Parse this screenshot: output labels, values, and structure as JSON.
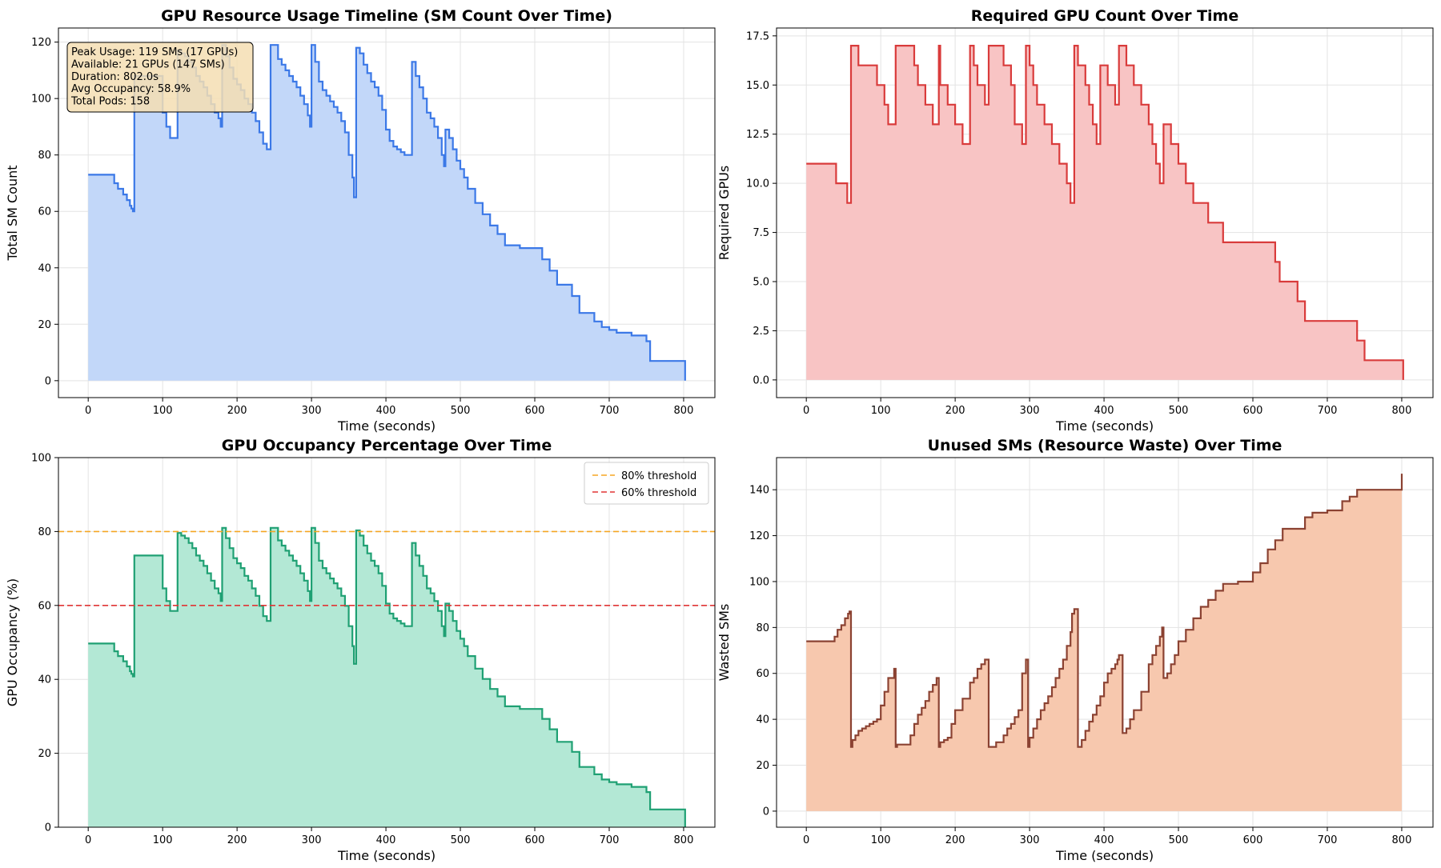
{
  "chart_data": [
    {
      "type": "area",
      "step": true,
      "title": "GPU Resource Usage Timeline (SM Count Over Time)",
      "xlabel": "Time (seconds)",
      "ylabel": "Total SM Count",
      "xlim": [
        -40,
        842
      ],
      "ylim": [
        -6,
        125
      ],
      "xticks": [
        0,
        100,
        200,
        300,
        400,
        500,
        600,
        700,
        800
      ],
      "yticks": [
        0,
        20,
        40,
        60,
        80,
        100,
        120
      ],
      "grid": true,
      "line_color": "#3b78e7",
      "fill_color": "#c2d7f9",
      "x": [
        0,
        35,
        40,
        47,
        52,
        56,
        58,
        60,
        62,
        100,
        105,
        110,
        115,
        120,
        125,
        130,
        135,
        140,
        145,
        150,
        155,
        160,
        165,
        170,
        175,
        178,
        180,
        185,
        190,
        195,
        200,
        205,
        210,
        215,
        220,
        225,
        230,
        235,
        240,
        245,
        250,
        255,
        260,
        265,
        270,
        275,
        280,
        285,
        290,
        295,
        298,
        300,
        305,
        310,
        315,
        320,
        325,
        330,
        335,
        340,
        345,
        350,
        355,
        357,
        360,
        365,
        370,
        375,
        380,
        385,
        390,
        395,
        400,
        405,
        410,
        415,
        420,
        425,
        430,
        435,
        440,
        445,
        450,
        455,
        460,
        465,
        470,
        475,
        478,
        480,
        485,
        490,
        495,
        500,
        505,
        510,
        520,
        530,
        540,
        550,
        560,
        570,
        580,
        590,
        600,
        610,
        620,
        630,
        640,
        650,
        660,
        670,
        680,
        690,
        700,
        710,
        720,
        730,
        740,
        750,
        755,
        760,
        770,
        780,
        790,
        802
      ],
      "y": [
        73,
        70,
        68,
        66,
        64,
        62,
        61,
        60,
        108,
        95,
        90,
        86,
        86,
        117,
        116,
        115,
        113,
        111,
        108,
        106,
        104,
        101,
        98,
        95,
        93,
        90,
        119,
        115,
        111,
        107,
        105,
        103,
        100,
        98,
        95,
        92,
        88,
        84,
        82,
        119,
        119,
        114,
        112,
        110,
        108,
        106,
        104,
        101,
        98,
        94,
        90,
        119,
        113,
        106,
        103,
        101,
        99,
        97,
        95,
        92,
        88,
        80,
        72,
        65,
        118,
        116,
        112,
        109,
        106,
        104,
        101,
        96,
        89,
        85,
        83,
        82,
        81,
        80,
        80,
        113,
        108,
        104,
        100,
        95,
        93,
        90,
        86,
        80,
        76,
        89,
        86,
        82,
        78,
        75,
        72,
        68,
        63,
        59,
        55,
        52,
        48,
        48,
        47,
        47,
        47,
        43,
        39,
        34,
        34,
        30,
        24,
        24,
        21,
        19,
        18,
        17,
        17,
        16,
        16,
        14,
        7,
        7,
        7,
        7,
        7,
        0
      ]
    },
    {
      "type": "area",
      "step": true,
      "title": "Required GPU Count Over Time",
      "xlabel": "Time (seconds)",
      "ylabel": "Required GPUs",
      "xlim": [
        -40,
        842
      ],
      "ylim": [
        -0.9,
        17.9
      ],
      "xticks": [
        0,
        100,
        200,
        300,
        400,
        500,
        600,
        700,
        800
      ],
      "yticks": [
        0.0,
        2.5,
        5.0,
        7.5,
        10.0,
        12.5,
        15.0,
        17.5
      ],
      "ytick_labels": [
        "0.0",
        "2.5",
        "5.0",
        "7.5",
        "10.0",
        "12.5",
        "15.0",
        "17.5"
      ],
      "grid": true,
      "line_color": "#d93b3b",
      "fill_color": "#f8c4c4",
      "x": [
        0,
        40,
        55,
        60,
        70,
        95,
        105,
        110,
        120,
        145,
        150,
        160,
        170,
        178,
        180,
        190,
        200,
        210,
        220,
        225,
        230,
        240,
        245,
        265,
        275,
        280,
        290,
        295,
        300,
        305,
        310,
        320,
        330,
        340,
        350,
        355,
        357,
        360,
        365,
        375,
        380,
        385,
        390,
        395,
        405,
        415,
        420,
        430,
        440,
        450,
        460,
        465,
        470,
        475,
        480,
        490,
        500,
        510,
        520,
        540,
        560,
        575,
        590,
        600,
        630,
        636,
        660,
        670,
        700,
        740,
        750,
        755,
        760,
        802
      ],
      "y": [
        11,
        10,
        9,
        17,
        16,
        15,
        14,
        13,
        17,
        16,
        15,
        14,
        13,
        17,
        15,
        14,
        13,
        12,
        17,
        16,
        15,
        14,
        17,
        16,
        15,
        13,
        12,
        17,
        16,
        15,
        14,
        13,
        12,
        11,
        10,
        9,
        9,
        17,
        16,
        15,
        14,
        13,
        12,
        16,
        15,
        14,
        17,
        16,
        15,
        14,
        13,
        12,
        11,
        10,
        13,
        12,
        11,
        10,
        9,
        8,
        7,
        7,
        7,
        7,
        6,
        5,
        4,
        3,
        3,
        2,
        1,
        1,
        1,
        0
      ]
    },
    {
      "type": "area",
      "step": true,
      "title": "GPU Occupancy Percentage Over Time",
      "xlabel": "Time (seconds)",
      "ylabel": "GPU Occupancy (%)",
      "xlim": [
        -40,
        842
      ],
      "ylim": [
        0,
        100
      ],
      "xticks": [
        0,
        100,
        200,
        300,
        400,
        500,
        600,
        700,
        800
      ],
      "yticks": [
        0,
        20,
        40,
        60,
        80,
        100
      ],
      "grid": true,
      "line_color": "#1fa073",
      "fill_color": "#b3e8d5",
      "legend": "upper right",
      "thresholds": [
        {
          "y": 80,
          "label": "80% threshold",
          "color": "#f5a623"
        },
        {
          "y": 60,
          "label": "60% threshold",
          "color": "#e03535"
        }
      ],
      "x": [
        0,
        35,
        40,
        47,
        52,
        56,
        58,
        60,
        62,
        100,
        105,
        110,
        115,
        120,
        125,
        130,
        135,
        140,
        145,
        150,
        155,
        160,
        165,
        170,
        175,
        178,
        180,
        185,
        190,
        195,
        200,
        205,
        210,
        215,
        220,
        225,
        230,
        235,
        240,
        245,
        250,
        255,
        260,
        265,
        270,
        275,
        280,
        285,
        290,
        295,
        298,
        300,
        305,
        310,
        315,
        320,
        325,
        330,
        335,
        340,
        345,
        350,
        355,
        357,
        360,
        365,
        370,
        375,
        380,
        385,
        390,
        395,
        400,
        405,
        410,
        415,
        420,
        425,
        430,
        435,
        440,
        445,
        450,
        455,
        460,
        465,
        470,
        475,
        478,
        480,
        485,
        490,
        495,
        500,
        505,
        510,
        520,
        530,
        540,
        550,
        560,
        570,
        580,
        590,
        600,
        610,
        620,
        630,
        640,
        650,
        660,
        670,
        680,
        690,
        700,
        710,
        720,
        730,
        740,
        750,
        755,
        760,
        770,
        780,
        790,
        802
      ],
      "y": [
        49.7,
        47.6,
        46.3,
        44.9,
        43.5,
        42.2,
        41.5,
        40.8,
        73.5,
        64.6,
        61.2,
        58.5,
        58.5,
        79.6,
        78.9,
        78.2,
        76.9,
        75.5,
        73.5,
        72.1,
        70.7,
        68.7,
        66.7,
        64.6,
        63.3,
        61.2,
        81.0,
        78.2,
        75.5,
        72.8,
        71.4,
        70.1,
        68.0,
        66.7,
        64.6,
        62.6,
        59.9,
        57.1,
        55.8,
        81.0,
        81.0,
        77.6,
        76.2,
        74.8,
        73.5,
        72.1,
        70.7,
        68.7,
        66.7,
        63.9,
        61.2,
        81.0,
        76.9,
        72.1,
        70.1,
        68.7,
        67.3,
        66.0,
        64.6,
        62.6,
        59.9,
        54.4,
        49.0,
        44.2,
        80.3,
        78.9,
        76.2,
        74.1,
        72.1,
        70.7,
        68.7,
        65.3,
        60.5,
        57.8,
        56.5,
        55.8,
        55.1,
        54.4,
        54.4,
        76.9,
        73.5,
        70.7,
        68.0,
        64.6,
        63.3,
        61.2,
        58.5,
        54.4,
        51.7,
        60.5,
        58.5,
        55.8,
        53.1,
        51.0,
        49.0,
        46.3,
        42.9,
        40.1,
        37.4,
        35.4,
        32.7,
        32.7,
        32.0,
        32.0,
        32.0,
        29.3,
        26.5,
        23.1,
        23.1,
        20.4,
        16.3,
        16.3,
        14.3,
        12.9,
        12.2,
        11.6,
        11.6,
        10.9,
        10.9,
        9.5,
        4.8,
        4.8,
        4.8,
        4.8,
        4.8,
        0
      ]
    },
    {
      "type": "area",
      "step": true,
      "title": "Unused SMs (Resource Waste) Over Time",
      "xlabel": "Time (seconds)",
      "ylabel": "Wasted SMs",
      "xlim": [
        -40,
        842
      ],
      "ylim": [
        -7,
        154
      ],
      "xticks": [
        0,
        100,
        200,
        300,
        400,
        500,
        600,
        700,
        800
      ],
      "yticks": [
        0,
        20,
        40,
        60,
        80,
        100,
        120,
        140
      ],
      "grid": true,
      "line_color": "#8b4232",
      "fill_color": "#f7c8ae",
      "x": [
        0,
        38,
        42,
        47,
        52,
        56,
        58,
        60,
        62,
        66,
        70,
        75,
        80,
        85,
        90,
        95,
        100,
        105,
        110,
        118,
        120,
        122,
        130,
        140,
        145,
        150,
        155,
        160,
        165,
        170,
        175,
        178,
        180,
        185,
        190,
        195,
        200,
        210,
        220,
        225,
        230,
        235,
        240,
        245,
        255,
        265,
        270,
        275,
        280,
        285,
        290,
        295,
        298,
        300,
        305,
        310,
        315,
        320,
        325,
        330,
        335,
        340,
        345,
        350,
        355,
        357,
        360,
        365,
        370,
        375,
        380,
        385,
        390,
        395,
        400,
        405,
        410,
        415,
        418,
        420,
        425,
        430,
        435,
        440,
        450,
        460,
        465,
        470,
        475,
        478,
        480,
        485,
        490,
        495,
        500,
        510,
        520,
        530,
        540,
        550,
        560,
        570,
        580,
        590,
        600,
        610,
        620,
        630,
        640,
        650,
        660,
        670,
        680,
        690,
        700,
        710,
        720,
        730,
        740,
        750,
        752,
        755,
        760,
        770,
        780,
        790,
        800
      ],
      "y": [
        74,
        76,
        79,
        81,
        84,
        86,
        87,
        28,
        31,
        33,
        35,
        36,
        37,
        38,
        39,
        40,
        46,
        52,
        58,
        62,
        28,
        29,
        29,
        33,
        38,
        42,
        45,
        48,
        52,
        55,
        58,
        28,
        30,
        31,
        32,
        38,
        44,
        49,
        56,
        58,
        62,
        64,
        66,
        28,
        30,
        33,
        36,
        38,
        41,
        44,
        60,
        66,
        28,
        32,
        36,
        40,
        44,
        47,
        50,
        54,
        58,
        62,
        66,
        72,
        78,
        86,
        88,
        28,
        31,
        35,
        39,
        42,
        46,
        50,
        56,
        60,
        62,
        64,
        66,
        68,
        34,
        36,
        40,
        44,
        52,
        64,
        68,
        72,
        76,
        80,
        58,
        60,
        64,
        68,
        74,
        79,
        84,
        89,
        92,
        96,
        99,
        99,
        100,
        100,
        104,
        108,
        114,
        118,
        123,
        123,
        123,
        128,
        130,
        130,
        131,
        131,
        135,
        137,
        140,
        140,
        140,
        140,
        140,
        140,
        140,
        140,
        147
      ]
    }
  ],
  "info_box": {
    "lines": [
      "Peak Usage: 119 SMs (17 GPUs)",
      "Available: 21 GPUs (147 SMs)",
      "Duration: 802.0s",
      "Avg Occupancy: 58.9%",
      "Total Pods: 158"
    ]
  },
  "colors": {
    "background": "#ffffff",
    "grid": "#e3e3e3",
    "axes": "#000000",
    "info_box_fill": "#f5deb3"
  }
}
